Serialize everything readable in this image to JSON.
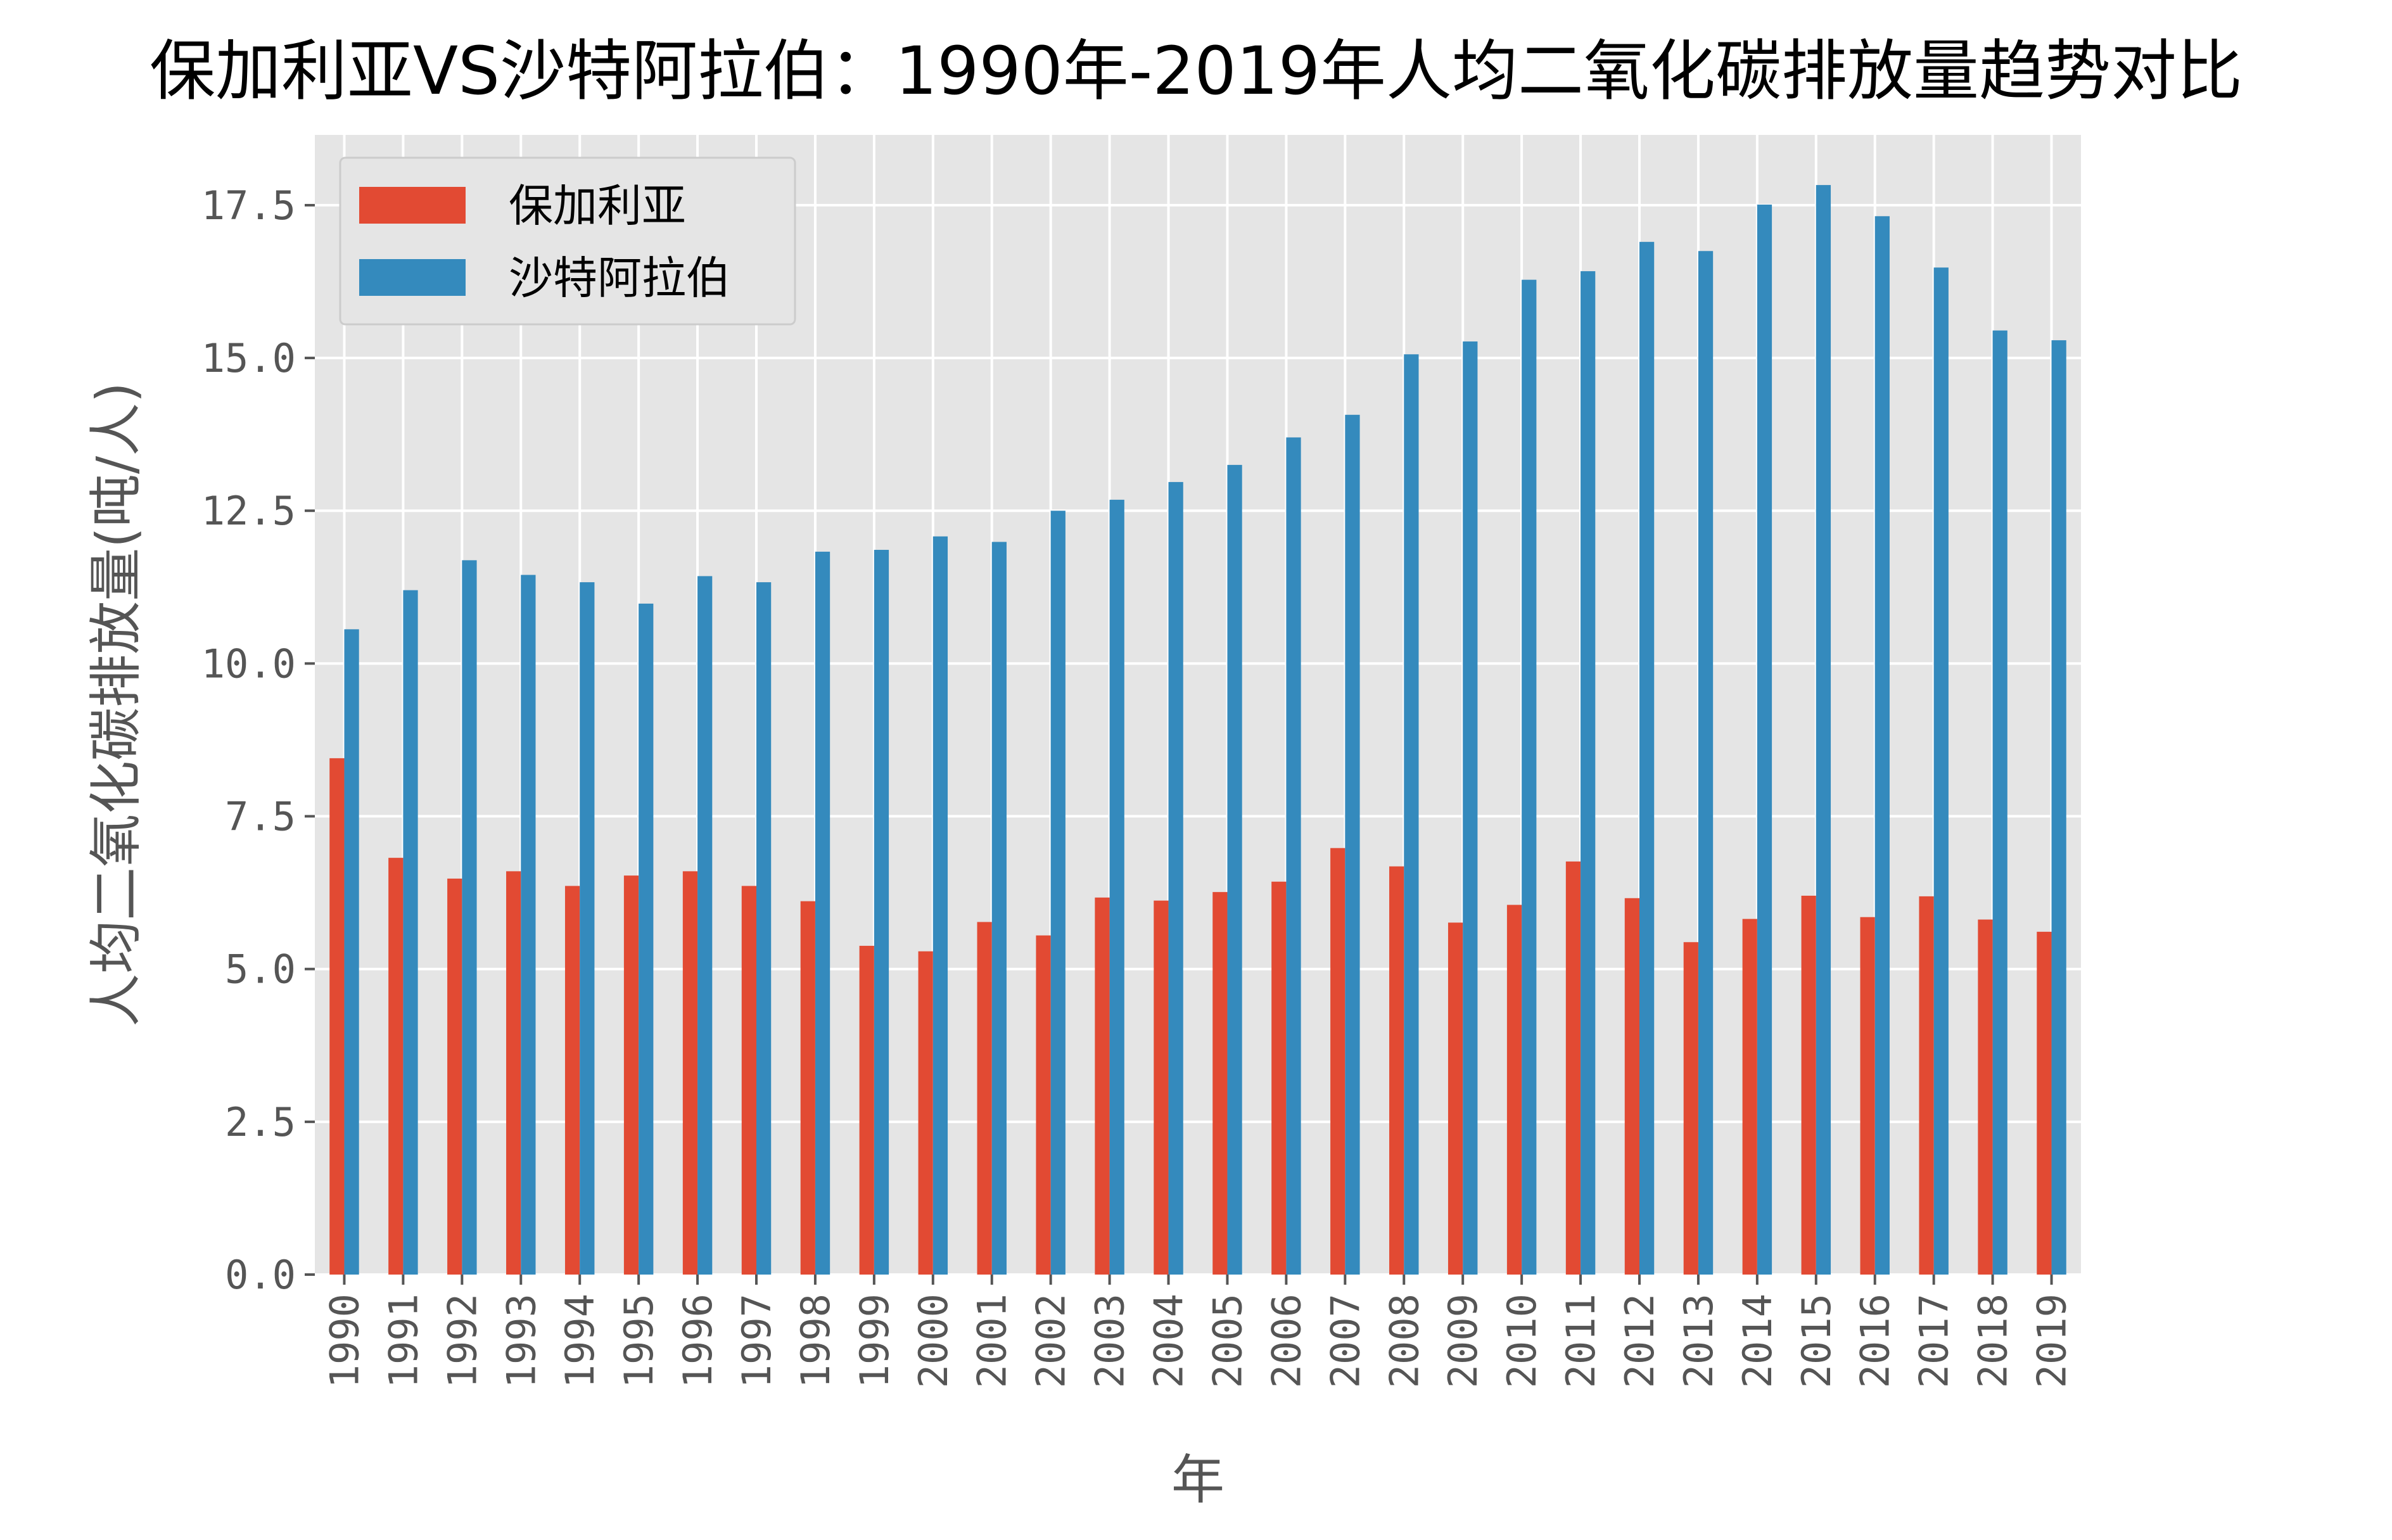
{
  "chart_data": {
    "type": "bar",
    "title": "保加利亚VS沙特阿拉伯：1990年-2019年人均二氧化碳排放量趋势对比",
    "xlabel": "年",
    "ylabel": "人均二氧化碳排放量(吨/人)",
    "categories": [
      "1990",
      "1991",
      "1992",
      "1993",
      "1994",
      "1995",
      "1996",
      "1997",
      "1998",
      "1999",
      "2000",
      "2001",
      "2002",
      "2003",
      "2004",
      "2005",
      "2006",
      "2007",
      "2008",
      "2009",
      "2010",
      "2011",
      "2012",
      "2013",
      "2014",
      "2015",
      "2016",
      "2017",
      "2018",
      "2019"
    ],
    "series": [
      {
        "name": "保加利亚",
        "color": "#E24A33",
        "values": [
          8.45,
          6.82,
          6.48,
          6.6,
          6.36,
          6.53,
          6.6,
          6.36,
          6.11,
          5.38,
          5.29,
          5.77,
          5.55,
          6.17,
          6.12,
          6.26,
          6.43,
          6.98,
          6.68,
          5.76,
          6.05,
          6.76,
          6.16,
          5.44,
          5.82,
          6.2,
          5.85,
          6.19,
          5.81,
          5.61
        ]
      },
      {
        "name": "沙特阿拉伯",
        "color": "#348ABD",
        "values": [
          10.56,
          11.2,
          11.69,
          11.45,
          11.33,
          10.98,
          11.43,
          11.33,
          11.83,
          11.86,
          12.08,
          11.99,
          12.5,
          12.68,
          12.97,
          13.25,
          13.7,
          14.07,
          15.06,
          15.27,
          16.28,
          16.42,
          16.9,
          16.75,
          17.51,
          17.83,
          17.32,
          16.48,
          15.45,
          15.29
        ]
      }
    ],
    "yticks": [
      "0.0",
      "2.5",
      "5.0",
      "7.5",
      "10.0",
      "12.5",
      "15.0",
      "17.5"
    ],
    "ylim": [
      0,
      18.65
    ],
    "grid": true,
    "legend_position": "top-left",
    "plot_background": "#E5E5E5",
    "grid_color": "#FFFFFF"
  }
}
